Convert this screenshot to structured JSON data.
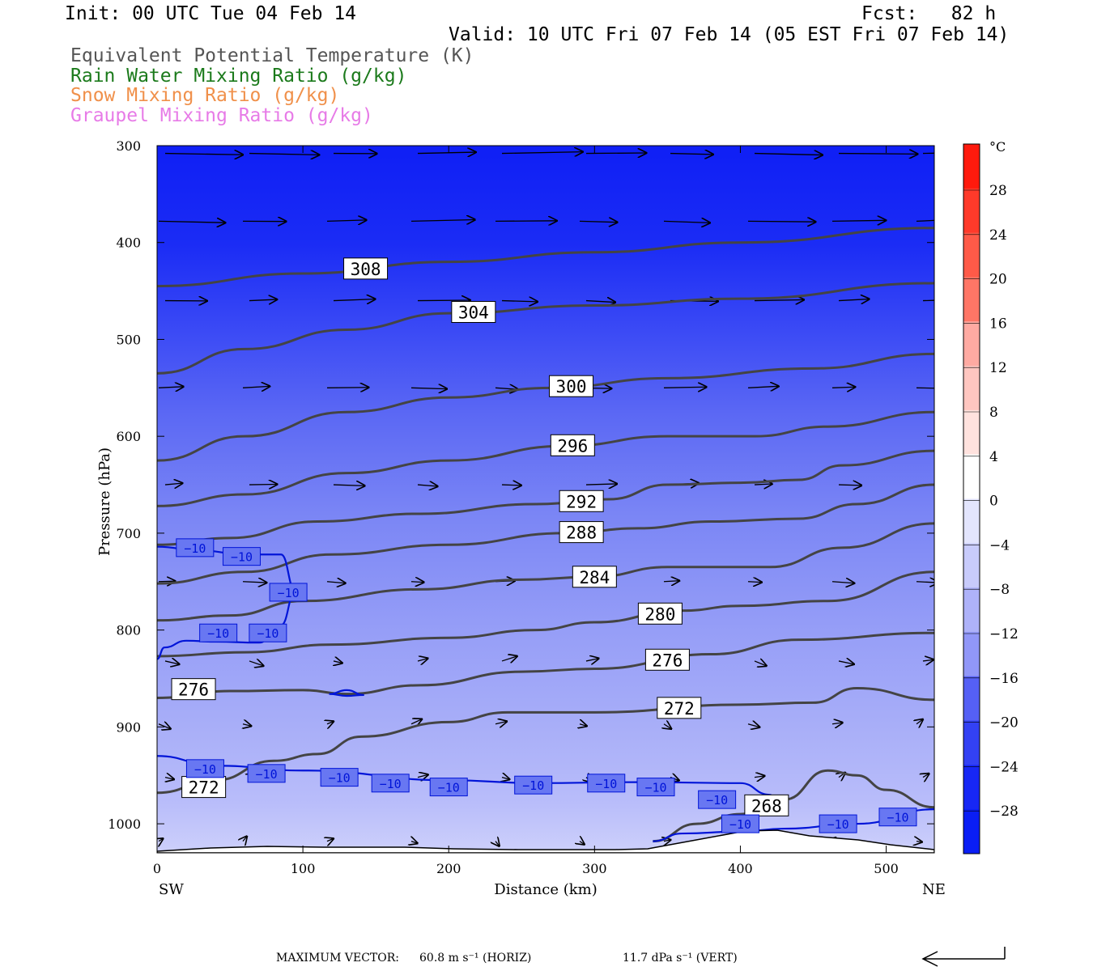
{
  "header": {
    "init": "Init: 00 UTC Tue 04 Feb 14",
    "fcst": "Fcst:   82 h",
    "valid": "Valid: 10 UTC Fri 07 Feb 14 (05 EST Fri 07 Feb 14)",
    "legend": [
      {
        "text": "Equivalent Potential Temperature (K)",
        "color": "#555555"
      },
      {
        "text": "Rain Water Mixing Ratio (g/kg)",
        "color": "#1b7a1b"
      },
      {
        "text": "Snow Mixing Ratio (g/kg)",
        "color": "#f0904a"
      },
      {
        "text": "Graupel Mixing Ratio (g/kg)",
        "color": "#e77be7"
      }
    ]
  },
  "footer": {
    "max_vector_label": "MAXIMUM VECTOR:",
    "horiz": "60.8 m s⁻¹ (HORIZ)",
    "vert": "11.7 dPa s⁻¹ (VERT)"
  },
  "chart_data": {
    "type": "cross-section",
    "xlabel": "Distance (km)",
    "ylabel": "Pressure (hPa)",
    "xlim": [
      0,
      533
    ],
    "ylim": [
      300,
      1030
    ],
    "xticks": [
      0,
      100,
      200,
      300,
      400,
      500
    ],
    "yticks": [
      300,
      400,
      500,
      600,
      700,
      800,
      900,
      1000
    ],
    "x_end_labels": {
      "left": "SW",
      "right": "NE"
    },
    "colorbar": {
      "unit": "°C",
      "ticks": [
        28,
        24,
        20,
        16,
        12,
        8,
        4,
        0,
        -4,
        -8,
        -12,
        -16,
        -20,
        -24,
        -28
      ]
    },
    "theta_e_contours": [
      {
        "label": "308",
        "points": [
          [
            0,
            445
          ],
          [
            100,
            432
          ],
          [
            200,
            420
          ],
          [
            300,
            410
          ],
          [
            400,
            400
          ],
          [
            533,
            385
          ]
        ]
      },
      {
        "label": "304",
        "points": [
          [
            0,
            535
          ],
          [
            60,
            510
          ],
          [
            130,
            490
          ],
          [
            200,
            473
          ],
          [
            300,
            465
          ],
          [
            400,
            458
          ],
          [
            533,
            442
          ]
        ]
      },
      {
        "label": "300",
        "points": [
          [
            0,
            625
          ],
          [
            60,
            600
          ],
          [
            130,
            575
          ],
          [
            200,
            560
          ],
          [
            270,
            550
          ],
          [
            350,
            540
          ],
          [
            450,
            530
          ],
          [
            533,
            515
          ]
        ]
      },
      {
        "label": "296",
        "points": [
          [
            0,
            672
          ],
          [
            60,
            660
          ],
          [
            130,
            638
          ],
          [
            200,
            625
          ],
          [
            280,
            610
          ],
          [
            350,
            600
          ],
          [
            410,
            600
          ],
          [
            460,
            590
          ],
          [
            533,
            575
          ]
        ]
      },
      {
        "label": "292",
        "points": [
          [
            0,
            712
          ],
          [
            50,
            705
          ],
          [
            110,
            688
          ],
          [
            180,
            680
          ],
          [
            260,
            670
          ],
          [
            310,
            665
          ],
          [
            350,
            650
          ],
          [
            400,
            648
          ],
          [
            440,
            645
          ],
          [
            470,
            630
          ],
          [
            533,
            615
          ]
        ]
      },
      {
        "label": "288",
        "points": [
          [
            0,
            752
          ],
          [
            60,
            740
          ],
          [
            120,
            722
          ],
          [
            200,
            712
          ],
          [
            280,
            700
          ],
          [
            330,
            695
          ],
          [
            380,
            688
          ],
          [
            440,
            685
          ],
          [
            480,
            670
          ],
          [
            533,
            650
          ]
        ]
      },
      {
        "label": "284",
        "points": [
          [
            0,
            790
          ],
          [
            50,
            785
          ],
          [
            100,
            770
          ],
          [
            180,
            758
          ],
          [
            250,
            748
          ],
          [
            300,
            745
          ],
          [
            350,
            735
          ],
          [
            420,
            735
          ],
          [
            470,
            715
          ],
          [
            533,
            690
          ]
        ]
      },
      {
        "label": "280",
        "points": [
          [
            0,
            827
          ],
          [
            60,
            823
          ],
          [
            120,
            815
          ],
          [
            200,
            808
          ],
          [
            260,
            800
          ],
          [
            300,
            792
          ],
          [
            360,
            780
          ],
          [
            400,
            775
          ],
          [
            460,
            770
          ],
          [
            533,
            740
          ]
        ]
      },
      {
        "label": "276",
        "points": [
          [
            0,
            870
          ],
          [
            50,
            863
          ],
          [
            100,
            862
          ],
          [
            130,
            866
          ],
          [
            180,
            857
          ],
          [
            250,
            843
          ],
          [
            300,
            840
          ],
          [
            380,
            825
          ],
          [
            440,
            810
          ],
          [
            533,
            803
          ]
        ]
      },
      {
        "label": "272",
        "points": [
          [
            0,
            968
          ],
          [
            40,
            955
          ],
          [
            80,
            935
          ],
          [
            110,
            928
          ],
          [
            140,
            910
          ],
          [
            200,
            895
          ],
          [
            240,
            885
          ],
          [
            300,
            885
          ],
          [
            400,
            877
          ],
          [
            450,
            875
          ],
          [
            480,
            860
          ],
          [
            533,
            872
          ]
        ]
      },
      {
        "label": "268",
        "points": [
          [
            340,
            1018
          ],
          [
            370,
            1000
          ],
          [
            400,
            990
          ],
          [
            430,
            975
          ],
          [
            460,
            945
          ],
          [
            480,
            950
          ],
          [
            500,
            965
          ],
          [
            533,
            983
          ]
        ]
      }
    ],
    "temperature_contour_label": "−10",
    "vectors_note": "wind vectors (horizontal / vertical)"
  }
}
